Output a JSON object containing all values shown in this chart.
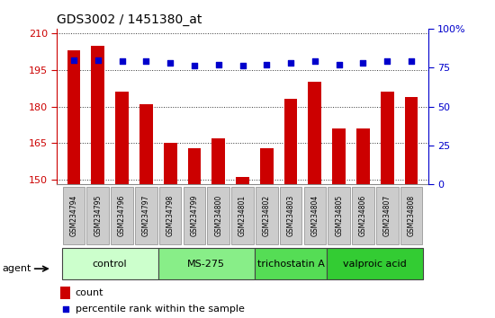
{
  "title": "GDS3002 / 1451380_at",
  "samples": [
    "GSM234794",
    "GSM234795",
    "GSM234796",
    "GSM234797",
    "GSM234798",
    "GSM234799",
    "GSM234800",
    "GSM234801",
    "GSM234802",
    "GSM234803",
    "GSM234804",
    "GSM234805",
    "GSM234806",
    "GSM234807",
    "GSM234808"
  ],
  "counts": [
    203,
    205,
    186,
    181,
    165,
    163,
    167,
    151,
    163,
    183,
    190,
    171,
    171,
    186,
    184
  ],
  "percentiles": [
    80,
    80,
    79,
    79,
    78,
    76,
    77,
    76,
    77,
    78,
    79,
    77,
    78,
    79,
    79
  ],
  "ylim_left": [
    148,
    212
  ],
  "ylim_right": [
    0,
    100
  ],
  "yticks_left": [
    150,
    165,
    180,
    195,
    210
  ],
  "yticks_right": [
    0,
    25,
    50,
    75,
    100
  ],
  "bar_color": "#cc0000",
  "dot_color": "#0000cc",
  "groups": [
    {
      "label": "control",
      "start": 0,
      "end": 3,
      "color": "#ccffcc"
    },
    {
      "label": "MS-275",
      "start": 4,
      "end": 7,
      "color": "#88ee88"
    },
    {
      "label": "trichostatin A",
      "start": 8,
      "end": 10,
      "color": "#55dd55"
    },
    {
      "label": "valproic acid",
      "start": 11,
      "end": 14,
      "color": "#33cc33"
    }
  ],
  "legend_count_color": "#cc0000",
  "legend_dot_color": "#0000cc",
  "background_color": "#ffffff",
  "grid_color": "#333333",
  "tick_label_bg": "#cccccc",
  "group_border_color": "#444444"
}
